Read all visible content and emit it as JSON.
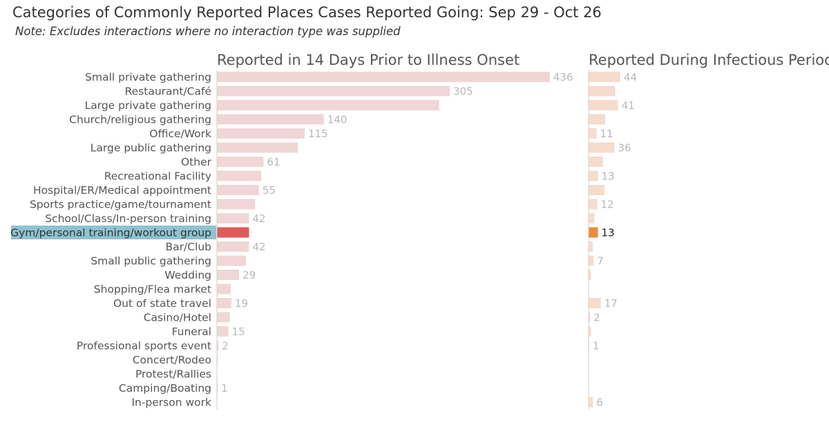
{
  "title": "Categories of Commonly Reported Places Cases Reported Going: Sep 29 - Oct 26",
  "subtitle": "Note: Excludes interactions where no interaction type was supplied",
  "colors": {
    "left_bar": "#f0d6d6",
    "left_highlight": "#e05a5a",
    "right_bar": "#f5dccd",
    "right_highlight": "#ee8a3c",
    "label_highlight_bg": "#8fc3cf",
    "axis": "#cfcfcf"
  },
  "highlight_category": "Gym/personal training/workout group",
  "chart_data": {
    "type": "bar",
    "orientation": "horizontal",
    "categories": [
      "Small private gathering",
      "Restaurant/Café",
      "Large private gathering",
      "Church/religious gathering",
      "Office/Work",
      "Large public gathering",
      "Other",
      "Recreational Facility",
      "Hospital/ER/Medical appointment",
      "Sports practice/game/tournament",
      "School/Class/In-person training",
      "Gym/personal training/workout group",
      "Bar/Club",
      "Small public gathering",
      "Wedding",
      "Shopping/Flea market",
      "Out of state travel",
      "Casino/Hotel",
      "Funeral",
      "Professional sports event",
      "Concert/Rodeo",
      "Protest/Rallies",
      "Camping/Boating",
      "In-person work"
    ],
    "series": [
      {
        "name": "Reported in 14 Days Prior to Illness Onset",
        "values": [
          436,
          305,
          291,
          140,
          115,
          106,
          61,
          58,
          55,
          50,
          42,
          42,
          42,
          38,
          29,
          18,
          19,
          17,
          15,
          2,
          1,
          0,
          1,
          0
        ],
        "labels": [
          "436",
          "305",
          "",
          "140",
          "115",
          "",
          "61",
          "",
          "55",
          "",
          "42",
          "",
          "42",
          "",
          "29",
          "",
          "19",
          "",
          "15",
          "2",
          "",
          "",
          "1",
          ""
        ],
        "xlim": [
          0,
          475
        ]
      },
      {
        "name": "Reported During Infectious Period",
        "values": [
          44,
          37,
          41,
          23,
          11,
          36,
          20,
          13,
          22,
          12,
          8,
          13,
          6,
          7,
          3,
          0,
          17,
          2,
          3,
          1,
          0,
          0,
          0,
          6
        ],
        "labels": [
          "44",
          "",
          "41",
          "",
          "11",
          "36",
          "",
          "13",
          "",
          "12",
          "",
          "13",
          "",
          "7",
          "",
          "",
          "17",
          "2",
          "",
          "1",
          "",
          "",
          "",
          "6"
        ],
        "xlim": [
          0,
          48
        ]
      }
    ]
  }
}
